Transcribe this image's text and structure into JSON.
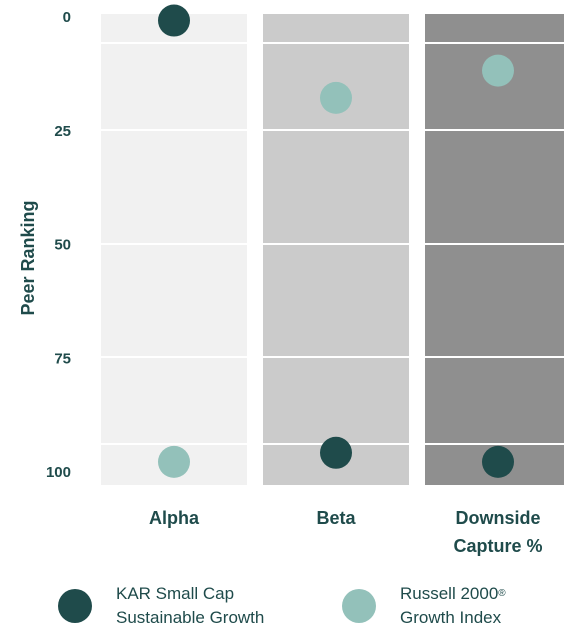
{
  "chart_data": {
    "type": "scatter",
    "ylabel": "Peer Ranking",
    "ylim": [
      0,
      100
    ],
    "y_inverted": true,
    "yticks": [
      0,
      25,
      50,
      75,
      100
    ],
    "yticklabels": [
      "0",
      "25",
      "50",
      "75",
      "100"
    ],
    "categories": [
      "Alpha",
      "Beta",
      "Downside\nCapture %"
    ],
    "category_shades": [
      "#f1f1f1",
      "#cbcbcb",
      "#8f8f8f"
    ],
    "series": [
      {
        "name": "KAR Small Cap Sustainable Growth",
        "color": "#1f4b4b",
        "values": [
          1,
          96,
          98
        ]
      },
      {
        "name": "Russell 2000® Growth Index",
        "color": "#93c1ba",
        "values": [
          98,
          18,
          12
        ]
      }
    ],
    "legend_position": "bottom",
    "grid": true
  },
  "legend": {
    "items": [
      {
        "label": "KAR Small Cap\nSustainable Growth",
        "color": "#1f4b4b"
      },
      {
        "label_main": "Russell 2000",
        "label_sup": "®",
        "label_rest": "\nGrowth Index",
        "color": "#93c1ba"
      }
    ]
  }
}
